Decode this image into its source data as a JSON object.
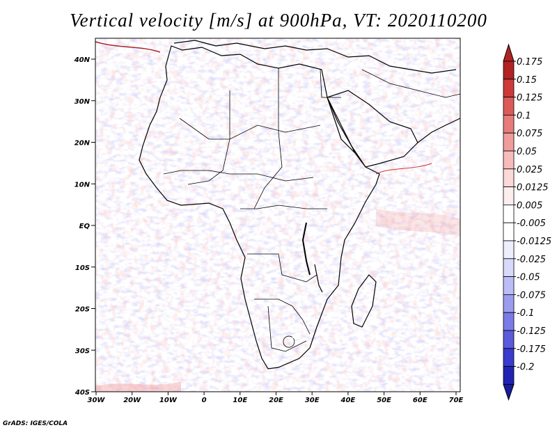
{
  "title": "Vertical velocity [m/s] at 900hPa, VT: 2020110200",
  "credit": "GrADS: IGES/COLA",
  "axes": {
    "x_ticks": [
      "30W",
      "20W",
      "10W",
      "0",
      "10E",
      "20E",
      "30E",
      "40E",
      "50E",
      "60E",
      "70E"
    ],
    "y_ticks": [
      "40N",
      "30N",
      "20N",
      "10N",
      "EQ",
      "10S",
      "20S",
      "30S",
      "40S"
    ]
  },
  "colorbar": {
    "levels": [
      "0.175",
      "0.15",
      "0.125",
      "0.1",
      "0.075",
      "0.05",
      "0.025",
      "0.0125",
      "0.005",
      "-0.005",
      "-0.0125",
      "-0.025",
      "-0.05",
      "-0.075",
      "-0.1",
      "-0.125",
      "-0.175",
      "-0.2"
    ],
    "colors": [
      "#b22222",
      "#cd3a3a",
      "#dc5a5a",
      "#e77b7b",
      "#ef9c9c",
      "#f6bcbc",
      "#fbd9d9",
      "#fdeeee",
      "#ffffff",
      "#ffffff",
      "#eeeefd",
      "#d9d9fb",
      "#bcbcf6",
      "#9c9cef",
      "#7b7be7",
      "#5a5adc",
      "#3a3acd",
      "#2222b2"
    ],
    "top_color": "#b22222",
    "bottom_color": "#1a1aa0"
  }
}
